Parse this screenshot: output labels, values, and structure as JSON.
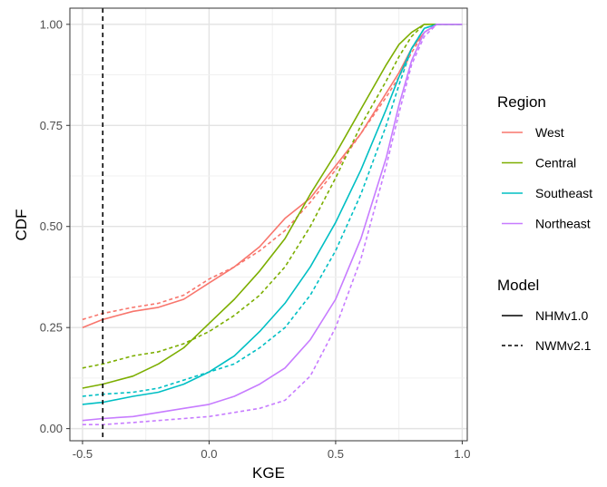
{
  "chart_data": {
    "type": "line",
    "title": "",
    "xlabel": "KGE",
    "ylabel": "CDF",
    "xlim": [
      -0.55,
      1.02
    ],
    "ylim": [
      -0.03,
      1.04
    ],
    "x_ticks": [
      "-0.5",
      "0.0",
      "0.5",
      "1.0"
    ],
    "y_ticks": [
      "0.00",
      "0.25",
      "0.50",
      "0.75",
      "1.00"
    ],
    "grid": true,
    "vline": {
      "x": -0.42,
      "style": "dashed",
      "color": "#000000"
    },
    "legend": {
      "placement": "right",
      "region_title": "Region",
      "model_title": "Model",
      "regions": [
        {
          "name": "West",
          "color": "#F8766D"
        },
        {
          "name": "Central",
          "color": "#7CAE00"
        },
        {
          "name": "Southeast",
          "color": "#00BFC4"
        },
        {
          "name": "Northeast",
          "color": "#C77CFF"
        }
      ],
      "models": [
        {
          "name": "NHMv1.0",
          "style": "solid"
        },
        {
          "name": "NWMv2.1",
          "style": "dashed"
        }
      ]
    },
    "series": [
      {
        "region": "West",
        "model": "NHMv1.0",
        "color": "#F8766D",
        "style": "solid",
        "x": [
          -0.5,
          -0.42,
          -0.3,
          -0.2,
          -0.1,
          0.0,
          0.1,
          0.2,
          0.3,
          0.4,
          0.5,
          0.6,
          0.7,
          0.75,
          0.8,
          0.85,
          0.9,
          0.95,
          1.0
        ],
        "y": [
          0.25,
          0.27,
          0.29,
          0.3,
          0.32,
          0.36,
          0.4,
          0.45,
          0.52,
          0.57,
          0.65,
          0.73,
          0.83,
          0.88,
          0.94,
          0.98,
          1.0,
          1.0,
          1.0
        ]
      },
      {
        "region": "West",
        "model": "NWMv2.1",
        "color": "#F8766D",
        "style": "dashed",
        "x": [
          -0.5,
          -0.42,
          -0.3,
          -0.2,
          -0.1,
          0.0,
          0.1,
          0.2,
          0.3,
          0.4,
          0.5,
          0.6,
          0.7,
          0.75,
          0.8,
          0.85,
          0.9,
          0.95,
          1.0
        ],
        "y": [
          0.27,
          0.285,
          0.3,
          0.31,
          0.33,
          0.37,
          0.4,
          0.44,
          0.49,
          0.56,
          0.64,
          0.73,
          0.82,
          0.87,
          0.93,
          0.98,
          1.0,
          1.0,
          1.0
        ]
      },
      {
        "region": "Central",
        "model": "NHMv1.0",
        "color": "#7CAE00",
        "style": "solid",
        "x": [
          -0.5,
          -0.42,
          -0.3,
          -0.2,
          -0.1,
          0.0,
          0.1,
          0.2,
          0.3,
          0.4,
          0.5,
          0.6,
          0.7,
          0.75,
          0.8,
          0.85,
          0.9,
          0.95,
          1.0
        ],
        "y": [
          0.1,
          0.11,
          0.13,
          0.16,
          0.2,
          0.26,
          0.32,
          0.39,
          0.47,
          0.58,
          0.68,
          0.79,
          0.9,
          0.95,
          0.98,
          1.0,
          1.0,
          1.0,
          1.0
        ]
      },
      {
        "region": "Central",
        "model": "NWMv2.1",
        "color": "#7CAE00",
        "style": "dashed",
        "x": [
          -0.5,
          -0.42,
          -0.3,
          -0.2,
          -0.1,
          0.0,
          0.1,
          0.2,
          0.3,
          0.4,
          0.5,
          0.6,
          0.7,
          0.75,
          0.8,
          0.85,
          0.9,
          0.95,
          1.0
        ],
        "y": [
          0.15,
          0.16,
          0.18,
          0.19,
          0.21,
          0.24,
          0.28,
          0.33,
          0.4,
          0.5,
          0.62,
          0.75,
          0.86,
          0.92,
          0.97,
          1.0,
          1.0,
          1.0,
          1.0
        ]
      },
      {
        "region": "Southeast",
        "model": "NHMv1.0",
        "color": "#00BFC4",
        "style": "solid",
        "x": [
          -0.5,
          -0.42,
          -0.3,
          -0.2,
          -0.1,
          0.0,
          0.1,
          0.2,
          0.3,
          0.4,
          0.5,
          0.6,
          0.7,
          0.75,
          0.8,
          0.85,
          0.9,
          0.95,
          1.0
        ],
        "y": [
          0.06,
          0.065,
          0.08,
          0.09,
          0.11,
          0.14,
          0.18,
          0.24,
          0.31,
          0.4,
          0.51,
          0.64,
          0.79,
          0.87,
          0.94,
          0.99,
          1.0,
          1.0,
          1.0
        ]
      },
      {
        "region": "Southeast",
        "model": "NWMv2.1",
        "color": "#00BFC4",
        "style": "dashed",
        "x": [
          -0.5,
          -0.42,
          -0.3,
          -0.2,
          -0.1,
          0.0,
          0.1,
          0.2,
          0.3,
          0.4,
          0.5,
          0.6,
          0.7,
          0.75,
          0.8,
          0.85,
          0.9,
          0.95,
          1.0
        ],
        "y": [
          0.08,
          0.085,
          0.09,
          0.1,
          0.12,
          0.14,
          0.16,
          0.2,
          0.25,
          0.33,
          0.44,
          0.58,
          0.75,
          0.85,
          0.94,
          0.99,
          1.0,
          1.0,
          1.0
        ]
      },
      {
        "region": "Northeast",
        "model": "NHMv1.0",
        "color": "#C77CFF",
        "style": "solid",
        "x": [
          -0.5,
          -0.42,
          -0.3,
          -0.2,
          -0.1,
          0.0,
          0.1,
          0.2,
          0.3,
          0.4,
          0.5,
          0.6,
          0.7,
          0.75,
          0.8,
          0.85,
          0.9,
          0.95,
          1.0
        ],
        "y": [
          0.02,
          0.025,
          0.03,
          0.04,
          0.05,
          0.06,
          0.08,
          0.11,
          0.15,
          0.22,
          0.32,
          0.47,
          0.67,
          0.8,
          0.91,
          0.98,
          1.0,
          1.0,
          1.0
        ]
      },
      {
        "region": "Northeast",
        "model": "NWMv2.1",
        "color": "#C77CFF",
        "style": "dashed",
        "x": [
          -0.5,
          -0.42,
          -0.3,
          -0.2,
          -0.1,
          0.0,
          0.1,
          0.2,
          0.3,
          0.4,
          0.5,
          0.6,
          0.7,
          0.75,
          0.8,
          0.85,
          0.9,
          0.95,
          1.0
        ],
        "y": [
          0.01,
          0.01,
          0.015,
          0.02,
          0.025,
          0.03,
          0.04,
          0.05,
          0.07,
          0.13,
          0.25,
          0.42,
          0.65,
          0.78,
          0.9,
          0.97,
          1.0,
          1.0,
          1.0
        ]
      }
    ]
  }
}
